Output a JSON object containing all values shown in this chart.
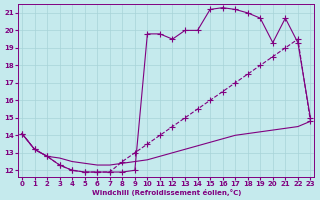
{
  "xlabel": "Windchill (Refroidissement éolien,°C)",
  "xlim": [
    -0.3,
    23.3
  ],
  "ylim": [
    11.6,
    21.5
  ],
  "yticks": [
    12,
    13,
    14,
    15,
    16,
    17,
    18,
    19,
    20,
    21
  ],
  "xticks": [
    0,
    1,
    2,
    3,
    4,
    5,
    6,
    7,
    8,
    9,
    10,
    11,
    12,
    13,
    14,
    15,
    16,
    17,
    18,
    19,
    20,
    21,
    22,
    23
  ],
  "bg_color": "#c5eaed",
  "grid_color": "#a8d4d8",
  "line_color": "#800080",
  "line1_x": [
    0,
    1,
    2,
    3,
    4,
    5,
    6,
    7,
    8,
    9,
    10,
    11,
    12,
    13,
    14,
    15,
    16,
    17,
    18,
    19,
    20,
    21,
    22,
    23
  ],
  "line1_y": [
    14.1,
    13.2,
    12.8,
    12.3,
    12.0,
    11.9,
    11.9,
    11.9,
    11.9,
    12.0,
    19.8,
    19.8,
    19.5,
    20.0,
    20.0,
    21.2,
    21.3,
    21.2,
    21.0,
    20.7,
    19.3,
    20.7,
    19.3,
    15.0
  ],
  "line2_x": [
    0,
    1,
    2,
    3,
    4,
    5,
    6,
    7,
    8,
    9,
    10,
    11,
    12,
    13,
    14,
    15,
    16,
    17,
    18,
    19,
    20,
    21,
    22,
    23
  ],
  "line2_y": [
    14.1,
    13.2,
    12.8,
    12.3,
    12.0,
    11.9,
    11.9,
    11.9,
    12.5,
    13.0,
    13.5,
    14.0,
    14.5,
    15.0,
    15.5,
    16.0,
    16.5,
    17.0,
    17.5,
    18.0,
    18.5,
    19.0,
    19.5,
    14.8
  ],
  "line3_x": [
    0,
    1,
    2,
    3,
    4,
    5,
    6,
    7,
    8,
    9,
    10,
    11,
    12,
    13,
    14,
    15,
    16,
    17,
    18,
    19,
    20,
    21,
    22,
    23
  ],
  "line3_y": [
    14.1,
    13.2,
    12.8,
    12.7,
    12.5,
    12.4,
    12.3,
    12.3,
    12.4,
    12.5,
    12.6,
    12.8,
    13.0,
    13.2,
    13.4,
    13.6,
    13.8,
    14.0,
    14.1,
    14.2,
    14.3,
    14.4,
    14.5,
    14.8
  ]
}
